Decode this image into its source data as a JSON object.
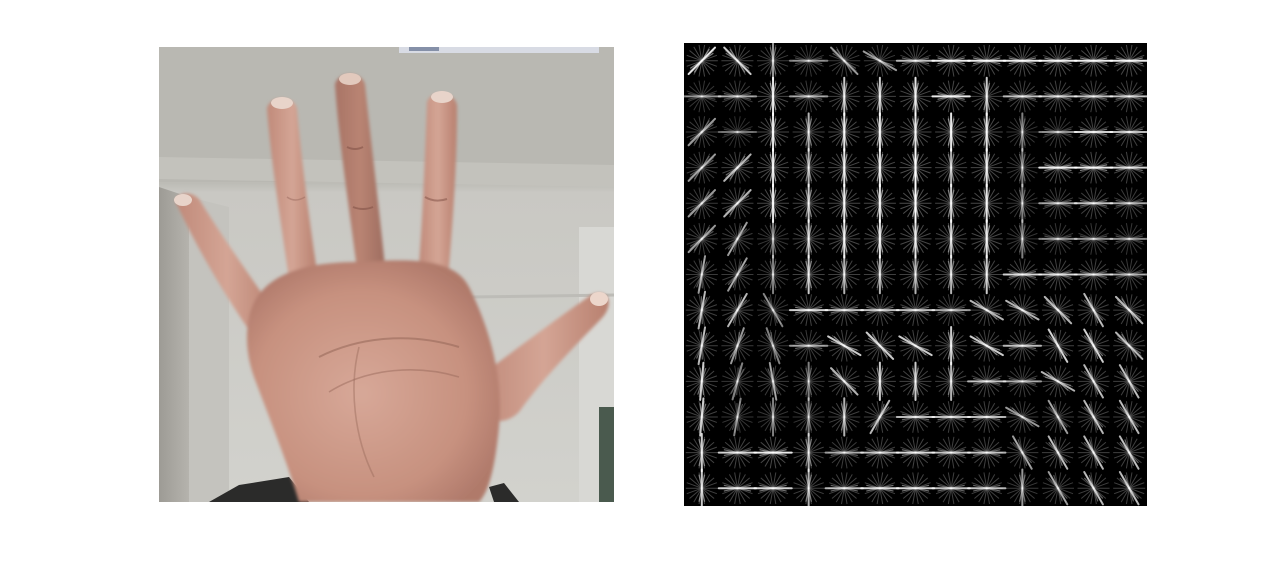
{
  "figure": {
    "panels": [
      {
        "kind": "photo",
        "subject": "open-hand-palm",
        "colors": {
          "wall_top": "#b9b8b2",
          "wall_bottom": "#cfcfca",
          "wall_left": "#a9a7a1",
          "ceiling_edge": "#8e8c86",
          "skin_light": "#d6a797",
          "skin_mid": "#c49080",
          "skin_shadow": "#a8766a",
          "sleeve": "#2b2b2a"
        }
      },
      {
        "kind": "hog-visualization",
        "background": "#000000",
        "stroke_color": "#ffffff",
        "grid": {
          "cols": 13,
          "rows": 13
        },
        "cell_dominant_orientations_deg": [
          [
            135,
            45,
            90,
            0,
            45,
            30,
            0,
            0,
            0,
            0,
            0,
            0,
            0
          ],
          [
            0,
            0,
            90,
            0,
            90,
            90,
            90,
            0,
            90,
            0,
            0,
            0,
            0
          ],
          [
            135,
            0,
            90,
            90,
            90,
            90,
            90,
            90,
            90,
            90,
            0,
            0,
            0
          ],
          [
            135,
            135,
            90,
            90,
            90,
            90,
            90,
            90,
            90,
            90,
            0,
            0,
            0
          ],
          [
            135,
            135,
            90,
            90,
            90,
            90,
            90,
            90,
            90,
            90,
            0,
            0,
            0
          ],
          [
            135,
            120,
            90,
            90,
            90,
            90,
            90,
            90,
            90,
            90,
            0,
            0,
            0
          ],
          [
            100,
            120,
            90,
            90,
            90,
            90,
            90,
            90,
            90,
            0,
            0,
            0,
            0
          ],
          [
            100,
            120,
            60,
            0,
            0,
            0,
            0,
            0,
            30,
            30,
            45,
            60,
            45
          ],
          [
            100,
            110,
            70,
            0,
            30,
            45,
            30,
            90,
            30,
            0,
            60,
            60,
            45
          ],
          [
            95,
            105,
            80,
            90,
            45,
            90,
            90,
            90,
            0,
            0,
            30,
            60,
            60
          ],
          [
            95,
            100,
            90,
            90,
            90,
            120,
            0,
            0,
            0,
            30,
            60,
            60,
            60
          ],
          [
            90,
            0,
            0,
            90,
            0,
            0,
            0,
            0,
            0,
            60,
            60,
            60,
            60
          ],
          [
            90,
            0,
            0,
            90,
            0,
            0,
            0,
            0,
            0,
            90,
            60,
            60,
            60
          ]
        ],
        "cell_strength": [
          [
            0.9,
            0.8,
            0.6,
            0.5,
            0.6,
            0.6,
            0.7,
            0.9,
            0.9,
            0.9,
            0.9,
            0.9,
            0.9
          ],
          [
            0.5,
            0.6,
            0.9,
            0.6,
            0.8,
            0.8,
            0.9,
            0.9,
            0.8,
            0.7,
            0.7,
            0.7,
            0.7
          ],
          [
            0.6,
            0.4,
            0.9,
            0.7,
            0.9,
            0.9,
            0.9,
            0.9,
            0.9,
            0.5,
            0.5,
            0.8,
            0.7
          ],
          [
            0.6,
            0.7,
            0.9,
            0.7,
            0.9,
            0.9,
            1.0,
            0.7,
            0.9,
            0.5,
            0.9,
            0.9,
            0.8
          ],
          [
            0.6,
            0.7,
            0.9,
            0.8,
            0.9,
            0.9,
            1.0,
            0.8,
            0.9,
            0.5,
            0.6,
            0.7,
            0.6
          ],
          [
            0.6,
            0.6,
            0.5,
            0.8,
            0.9,
            0.9,
            0.9,
            0.8,
            0.9,
            0.5,
            0.5,
            0.5,
            0.5
          ],
          [
            0.6,
            0.6,
            0.5,
            0.8,
            0.7,
            0.7,
            0.7,
            0.7,
            0.8,
            0.8,
            0.8,
            0.7,
            0.6
          ],
          [
            0.7,
            0.7,
            0.5,
            0.8,
            0.7,
            0.7,
            0.7,
            0.6,
            0.7,
            0.7,
            0.7,
            0.7,
            0.7
          ],
          [
            0.7,
            0.6,
            0.5,
            0.6,
            0.8,
            0.8,
            0.8,
            0.8,
            0.8,
            0.7,
            0.8,
            0.8,
            0.7
          ],
          [
            0.8,
            0.5,
            0.6,
            0.5,
            0.7,
            0.8,
            0.8,
            0.7,
            0.7,
            0.6,
            0.7,
            0.7,
            0.7
          ],
          [
            0.8,
            0.5,
            0.5,
            0.5,
            0.7,
            0.7,
            0.7,
            0.7,
            0.7,
            0.6,
            0.6,
            0.7,
            0.7
          ],
          [
            0.8,
            0.8,
            0.9,
            0.7,
            0.6,
            0.7,
            0.8,
            0.7,
            0.7,
            0.6,
            0.7,
            0.7,
            0.7
          ],
          [
            0.8,
            0.8,
            0.8,
            0.7,
            0.7,
            0.8,
            0.8,
            0.7,
            0.7,
            0.6,
            0.6,
            0.7,
            0.7
          ]
        ]
      }
    ]
  }
}
